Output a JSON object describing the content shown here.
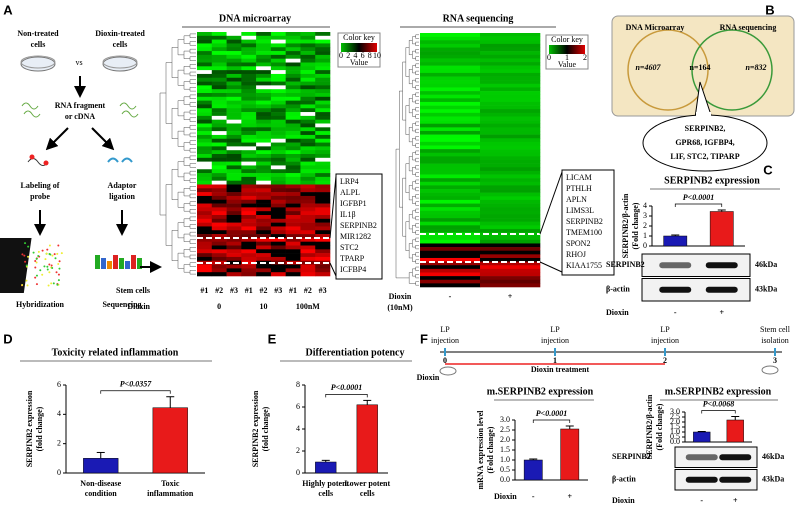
{
  "panel_labels": {
    "a": "A",
    "b": "B",
    "c": "C",
    "d": "D",
    "e": "E",
    "f": "F"
  },
  "panel_a": {
    "schematic": {
      "non_treated": [
        "Non-treated",
        "cells"
      ],
      "dioxin_treated": [
        "Dioxin-treated",
        "cells"
      ],
      "vs": "vs",
      "rna_fragment": [
        "RNA fragment",
        "or cDNA"
      ],
      "labeling": [
        "Labeling of",
        "probe"
      ],
      "adaptor": [
        "Adaptor",
        "ligation"
      ],
      "hybridization": "Hybridization",
      "sequencing": "Sequencing"
    },
    "microarray": {
      "title": "DNA microarray",
      "color_key": {
        "title": "Color key",
        "ticks": [
          0,
          2,
          4,
          6,
          8,
          10
        ],
        "label": "Value"
      },
      "genes": [
        "LRP4",
        "ALPL",
        "IGFBP1",
        "IL1β",
        "SERPINB2",
        "MIR1282",
        "STC2",
        "TPARP",
        "ICFBP4"
      ],
      "highlight_index": 4,
      "stem_cells_label": "Stem cells",
      "replicates": [
        "#1",
        "#2",
        "#3",
        "#1",
        "#2",
        "#3",
        "#1",
        "#2",
        "#3"
      ],
      "dioxin_label": "Dioxin",
      "doses": [
        "0",
        "10",
        "100nM"
      ]
    },
    "rna_seq": {
      "title": "RNA sequencing",
      "color_key": {
        "title": "Color key",
        "ticks": [
          0,
          1,
          2
        ],
        "label": "Value"
      },
      "genes": [
        "LICAM",
        "PTHLH",
        "APLN",
        "LIMS3L",
        "SERPINB2",
        "TMEM100",
        "SPON2",
        "RHOJ",
        "KIAA1755"
      ],
      "highlight_index": 4,
      "dioxin_label": [
        "Dioxin",
        "(10nM)"
      ],
      "conditions": [
        "-",
        "+"
      ]
    }
  },
  "panel_b": {
    "sets": [
      "DNA Microarray",
      "RNA sequencing"
    ],
    "counts": [
      "n=4607",
      "n=164",
      "n=832"
    ],
    "genes": [
      "SERPINB2,",
      "GPR68, IGFBP4,",
      "LIF, STC2, TIPARP"
    ]
  },
  "panel_f_timeline": {
    "events": [
      [
        "LP",
        "injection"
      ],
      [
        "LP",
        "injection"
      ],
      [
        "LP",
        "injection"
      ],
      [
        "Stem cell",
        "isolation"
      ]
    ],
    "days": [
      0,
      1,
      2,
      3
    ],
    "treatment": "Dioxin treatment",
    "dioxin": "Dioxin"
  },
  "chart_data": [
    {
      "type": "bar",
      "title": "SERPINB2 expression",
      "y_label": [
        "SERPINB2/β-actin",
        "(Fold change)"
      ],
      "x_label": "Dioxin",
      "categories": [
        "-",
        "+"
      ],
      "values": [
        1.0,
        3.45
      ],
      "errors": [
        0.1,
        0.15
      ],
      "colors": [
        "#1a1ab4",
        "#e81a1a"
      ],
      "ylim": [
        0,
        4
      ],
      "yticks": [
        0,
        1,
        2,
        3,
        4
      ],
      "p_value": "P<0.0001",
      "blot": {
        "rows": [
          "SERPINB2",
          "β-actin"
        ],
        "sizes": [
          "46kDa",
          "43kDa"
        ]
      }
    },
    {
      "type": "bar",
      "title": "Toxicity related inflammation",
      "y_label": [
        "SERPINB2 expression",
        "(fold change)"
      ],
      "categories": [
        [
          "Non-disease",
          "condition"
        ],
        [
          "Toxic",
          "inflammation"
        ]
      ],
      "values": [
        1.0,
        4.45
      ],
      "errors": [
        0.4,
        0.75
      ],
      "colors": [
        "#1a1ab4",
        "#e81a1a"
      ],
      "ylim": [
        0,
        6
      ],
      "yticks": [
        0,
        2,
        4,
        6
      ],
      "p_value": "P<0.0357"
    },
    {
      "type": "bar",
      "title": "Differentiation potency",
      "y_label": [
        "SERPINB2 expression",
        "(fold change)"
      ],
      "categories": [
        [
          "Highly potent",
          "cells"
        ],
        [
          "Lower potent",
          "cells"
        ]
      ],
      "values": [
        1.0,
        6.2
      ],
      "errors": [
        0.15,
        0.4
      ],
      "colors": [
        "#1a1ab4",
        "#e81a1a"
      ],
      "ylim": [
        0,
        8
      ],
      "yticks": [
        0,
        2,
        4,
        6,
        8
      ],
      "p_value": "P<0.0001"
    },
    {
      "type": "bar",
      "title": "m.SERPINB2 expression",
      "y_label": [
        "mRNA expression level",
        "(Fold change)"
      ],
      "x_label": "Dioxin",
      "categories": [
        "-",
        "+"
      ],
      "values": [
        1.0,
        2.55
      ],
      "errors": [
        0.05,
        0.15
      ],
      "colors": [
        "#1a1ab4",
        "#e81a1a"
      ],
      "ylim": [
        0,
        3
      ],
      "yticks": [
        {
          "value": 0,
          "label": "0.0"
        },
        0.5,
        {
          "value": 1,
          "label": "1.0"
        },
        1.5,
        {
          "value": 2,
          "label": "2.0"
        },
        2.5,
        {
          "value": 3,
          "label": "3.0"
        }
      ],
      "p_value": "P<0.0001"
    },
    {
      "type": "bar",
      "title": "m.SERPINB2 expression",
      "y_label": [
        "SERPINB2/β-actin",
        "(Fold change)"
      ],
      "x_label": "Dioxin",
      "categories": [
        "-",
        "+"
      ],
      "values": [
        1.0,
        2.2
      ],
      "errors": [
        0.05,
        0.35
      ],
      "colors": [
        "#1a1ab4",
        "#e81a1a"
      ],
      "ylim": [
        0,
        3
      ],
      "yticks": [
        {
          "value": 0,
          "label": "0.0"
        },
        0.5,
        {
          "value": 1,
          "label": "1.0"
        },
        1.5,
        {
          "value": 2,
          "label": "2.0"
        },
        2.5,
        {
          "value": 3,
          "label": "3.0"
        }
      ],
      "p_value": "P<0.0068",
      "blot": {
        "rows": [
          "SERPINB2",
          "β-actin"
        ],
        "sizes": [
          "46kDa",
          "43kDa"
        ]
      }
    }
  ]
}
